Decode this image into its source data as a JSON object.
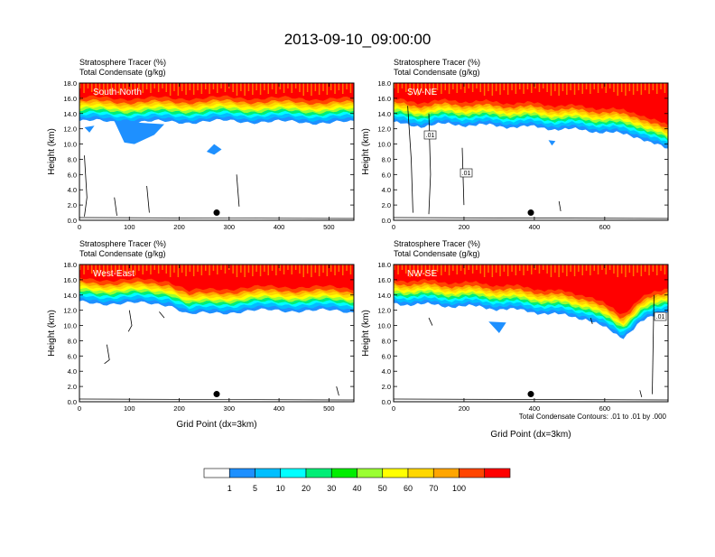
{
  "title": "2013-09-10_09:00:00",
  "colors": {
    "bins": [
      "#ffffff",
      "#1e90ff",
      "#00bfff",
      "#00ffff",
      "#00ee76",
      "#00ee00",
      "#9aff32",
      "#ffff00",
      "#ffd700",
      "#ffa500",
      "#ff4500",
      "#ff0000"
    ],
    "plume": "#ff0000"
  },
  "colorbar": {
    "labels": [
      "1",
      "5",
      "10",
      "20",
      "30",
      "40",
      "50",
      "60",
      "70",
      "100"
    ]
  },
  "contour_note": "Total Condensate Contours: .01 to .01 by .000",
  "chart_data": [
    {
      "type": "heatmap",
      "name": "South-North",
      "subtitle_line1": "Stratosphere Tracer   (%)",
      "subtitle_line2": "Total Condensate   (g/kg)",
      "ylabel": "Height (km)",
      "xlabel": "",
      "xlim": [
        0,
        550
      ],
      "ylim": [
        0,
        18
      ],
      "xticks": [
        "0",
        "100",
        "200",
        "300",
        "400",
        "500"
      ],
      "yticks": [
        "0.0",
        "2.0",
        "4.0",
        "6.0",
        "8.0",
        "10.0",
        "12.0",
        "14.0",
        "16.0",
        "18.0"
      ],
      "tropopause": [
        [
          0,
          14.6
        ],
        [
          100,
          14.5
        ],
        [
          200,
          14.5
        ],
        [
          300,
          14.6
        ],
        [
          400,
          14.5
        ],
        [
          550,
          14.4
        ]
      ],
      "blue_blobs": [
        [
          [
            70,
            13.0
          ],
          [
            90,
            10.2
          ],
          [
            110,
            10.0
          ],
          [
            150,
            11.2
          ],
          [
            170,
            12.6
          ]
        ],
        [
          [
            270,
            10.0
          ],
          [
            255,
            9.0
          ],
          [
            270,
            8.6
          ],
          [
            285,
            9.3
          ]
        ],
        [
          [
            10,
            12.2
          ],
          [
            20,
            11.5
          ],
          [
            30,
            12.4
          ]
        ]
      ],
      "contours": [
        [
          [
            10,
            8.5
          ],
          [
            15,
            3.0
          ],
          [
            10,
            0.5
          ]
        ],
        [
          [
            70,
            3.0
          ],
          [
            75,
            0.6
          ]
        ],
        [
          [
            135,
            4.5
          ],
          [
            140,
            1.0
          ]
        ],
        [
          [
            315,
            6.0
          ],
          [
            320,
            1.8
          ]
        ]
      ],
      "marker_point": [
        275,
        1.0
      ]
    },
    {
      "type": "heatmap",
      "name": "SW-NE",
      "subtitle_line1": "Stratosphere Tracer   (%)",
      "subtitle_line2": "Total Condensate   (g/kg)",
      "ylabel": "Height (km)",
      "xlabel": "",
      "xlim": [
        0,
        780
      ],
      "ylim": [
        0,
        18
      ],
      "xticks": [
        "0",
        "200",
        "400",
        "600"
      ],
      "yticks": [
        "0.0",
        "2.0",
        "4.0",
        "6.0",
        "8.0",
        "10.0",
        "12.0",
        "14.0",
        "16.0",
        "18.0"
      ],
      "contour_labels": [
        ".01",
        ".01"
      ],
      "tropopause": [
        [
          0,
          14.3
        ],
        [
          80,
          14.0
        ],
        [
          160,
          14.2
        ],
        [
          400,
          13.8
        ],
        [
          600,
          13.2
        ],
        [
          700,
          12.5
        ],
        [
          780,
          10.8
        ]
      ],
      "blue_blobs": [
        [
          [
            440,
            10.5
          ],
          [
            450,
            9.8
          ],
          [
            460,
            10.4
          ]
        ]
      ],
      "contours": [
        [
          [
            40,
            15.0
          ],
          [
            50,
            8.0
          ],
          [
            55,
            1.0
          ]
        ],
        [
          [
            100,
            14.0
          ],
          [
            105,
            6.0
          ],
          [
            100,
            0.8
          ]
        ],
        [
          [
            195,
            9.5
          ],
          [
            200,
            2.0
          ]
        ],
        [
          [
            470,
            2.5
          ],
          [
            475,
            1.2
          ]
        ]
      ],
      "marker_point": [
        390,
        1.0
      ]
    },
    {
      "type": "heatmap",
      "name": "West-East",
      "subtitle_line1": "Stratosphere Tracer   (%)",
      "subtitle_line2": "Total Condensate   (g/kg)",
      "ylabel": "Height (km)",
      "xlabel": "Grid Point (dx=3km)",
      "xlim": [
        0,
        550
      ],
      "ylim": [
        0,
        18
      ],
      "xticks": [
        "0",
        "100",
        "200",
        "300",
        "400",
        "500"
      ],
      "yticks": [
        "0.0",
        "2.0",
        "4.0",
        "6.0",
        "8.0",
        "10.0",
        "12.0",
        "14.0",
        "16.0",
        "18.0"
      ],
      "tropopause": [
        [
          0,
          14.6
        ],
        [
          180,
          14.4
        ],
        [
          220,
          13.0
        ],
        [
          330,
          13.5
        ],
        [
          450,
          13.6
        ],
        [
          550,
          13.4
        ]
      ],
      "blue_blobs": [],
      "contours": [
        [
          [
            55,
            7.5
          ],
          [
            60,
            5.5
          ],
          [
            50,
            5.0
          ]
        ],
        [
          [
            100,
            12.0
          ],
          [
            105,
            10.0
          ],
          [
            98,
            9.2
          ]
        ],
        [
          [
            160,
            11.8
          ],
          [
            170,
            11.0
          ]
        ],
        [
          [
            515,
            2.0
          ],
          [
            520,
            0.8
          ]
        ]
      ],
      "marker_point": [
        275,
        1.0
      ]
    },
    {
      "type": "heatmap",
      "name": "NW-SE",
      "subtitle_line1": "Stratosphere Tracer   (%)",
      "subtitle_line2": "Total Condensate   (g/kg)",
      "ylabel": "Height (km)",
      "xlabel": "Grid Point (dx=3km)",
      "xlim": [
        0,
        780
      ],
      "ylim": [
        0,
        18
      ],
      "xticks": [
        "0",
        "200",
        "400",
        "600"
      ],
      "yticks": [
        "0.0",
        "2.0",
        "4.0",
        "6.0",
        "8.0",
        "10.0",
        "12.0",
        "14.0",
        "16.0",
        "18.0"
      ],
      "contour_labels": [
        ".01"
      ],
      "tropopause": [
        [
          0,
          14.5
        ],
        [
          250,
          14.0
        ],
        [
          400,
          13.4
        ],
        [
          550,
          12.5
        ],
        [
          650,
          10.0
        ],
        [
          700,
          12.0
        ],
        [
          780,
          13.5
        ]
      ],
      "blue_blobs": [
        [
          [
            270,
            10.5
          ],
          [
            300,
            9.0
          ],
          [
            320,
            10.4
          ]
        ]
      ],
      "contours": [
        [
          [
            100,
            11.0
          ],
          [
            110,
            10.0
          ]
        ],
        [
          [
            560,
            11.0
          ],
          [
            565,
            10.2
          ]
        ],
        [
          [
            740,
            14.0
          ],
          [
            735,
            1.0
          ]
        ],
        [
          [
            700,
            1.5
          ],
          [
            705,
            0.6
          ]
        ]
      ],
      "marker_point": [
        390,
        1.0
      ]
    }
  ]
}
